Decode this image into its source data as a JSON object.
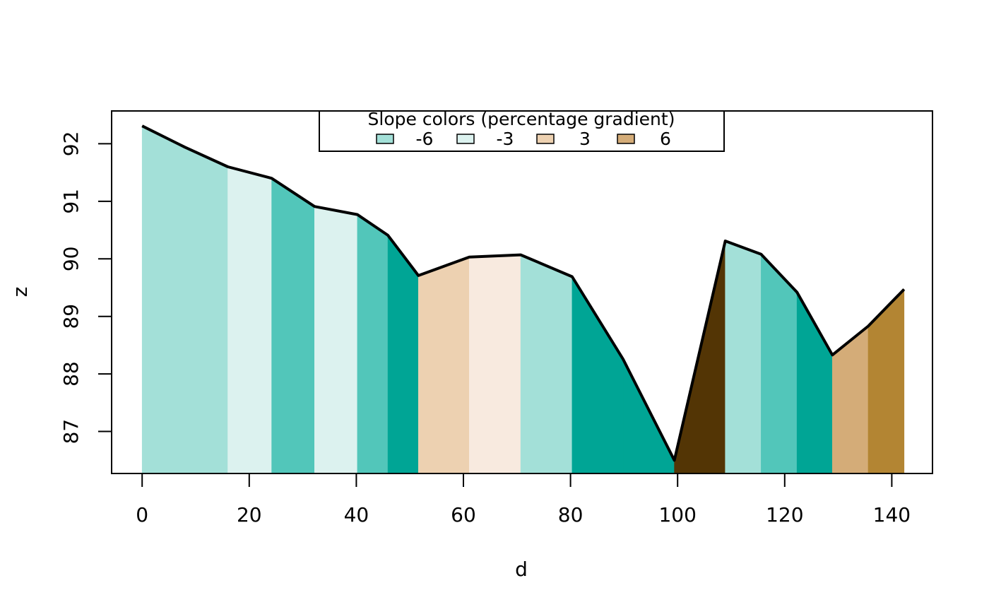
{
  "chart_data": {
    "type": "area",
    "xlabel": "d",
    "ylabel": "z",
    "xlim": [
      -5.7,
      147.6
    ],
    "ylim": [
      86.27,
      92.57
    ],
    "x_ticks": [
      "0",
      "20",
      "40",
      "60",
      "80",
      "100",
      "120",
      "140"
    ],
    "y_ticks": [
      "87",
      "88",
      "89",
      "90",
      "91",
      "92"
    ],
    "legend": {
      "title": "Slope colors (percentage gradient)",
      "placement": "top",
      "entries": [
        {
          "label": "-6",
          "color": "#A3E0D8"
        },
        {
          "label": "-3",
          "color": "#DCF2EF"
        },
        {
          "label": "3",
          "color": "#EDD1B1"
        },
        {
          "label": "6",
          "color": "#D4AC78"
        }
      ]
    },
    "profile": {
      "d": [
        0,
        8,
        16,
        24.2,
        32.2,
        40.2,
        45.9,
        51.6,
        61.1,
        70.7,
        80.3,
        89.8,
        99.4,
        108.9,
        115.6,
        122.3,
        128.9,
        135.6,
        142.3
      ],
      "z": [
        92.31,
        91.94,
        91.6,
        91.4,
        90.91,
        90.77,
        90.41,
        89.71,
        90.03,
        90.07,
        89.69,
        88.26,
        86.5,
        90.31,
        90.08,
        89.42,
        88.33,
        88.83,
        89.47
      ]
    },
    "segment_colors": [
      "#A3E0D8",
      "#A3E0D8",
      "#DCF2EF",
      "#52C6BA",
      "#DCF2EF",
      "#52C6BA",
      "#00A595",
      "#EDD1B1",
      "#F8EADF",
      "#A3E0D8",
      "#00A595",
      "#00A595",
      "#533505",
      "#A3E0D8",
      "#52C6BA",
      "#00A595",
      "#D4AC78",
      "#B38533"
    ]
  }
}
